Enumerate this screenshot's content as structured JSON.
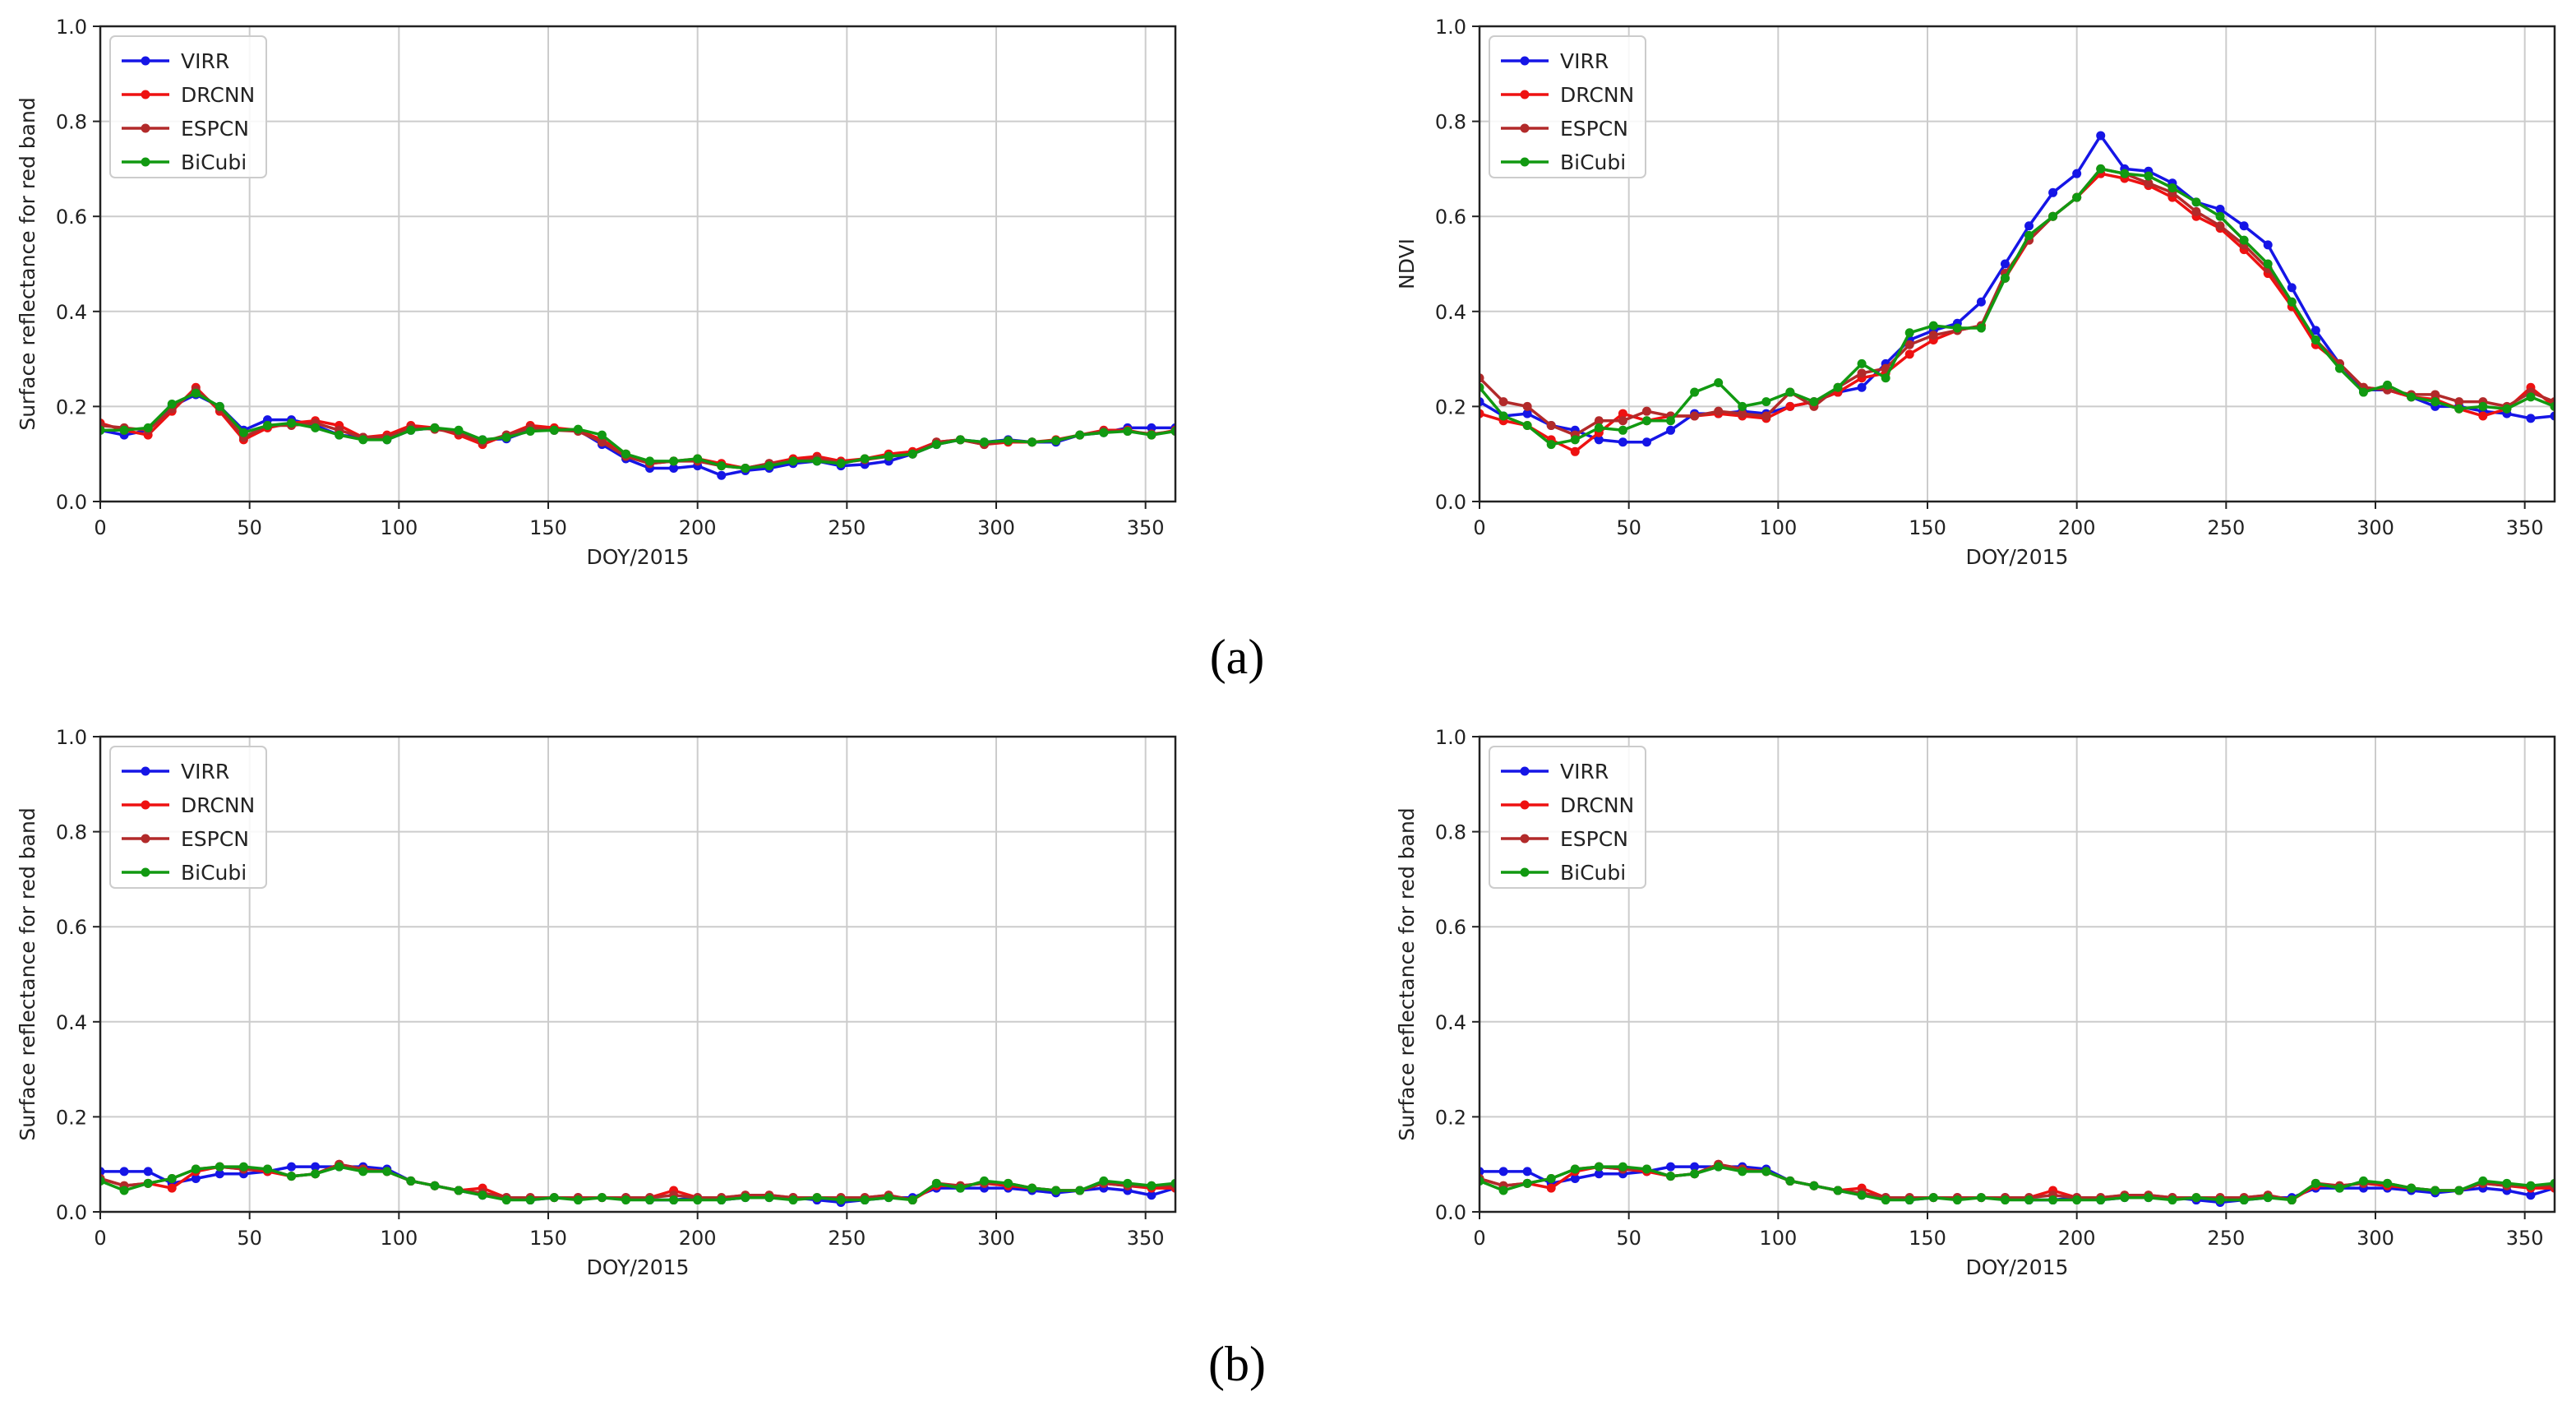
{
  "figure_labels": [
    "(a)",
    "(b)"
  ],
  "legend_colors": {
    "VIRR": "#1515e6",
    "DRCNN": "#ee1111",
    "ESPCN": "#b22a2a",
    "BiCubi": "#119911"
  },
  "chart_data": [
    {
      "type": "line",
      "title": "",
      "xlabel": "DOY/2015",
      "ylabel": "Surface reflectance for red band",
      "xlim": [
        0,
        360
      ],
      "ylim": [
        0,
        1.0
      ],
      "xticks": [
        0,
        50,
        100,
        150,
        200,
        250,
        300,
        350
      ],
      "yticks": [
        0.0,
        0.2,
        0.4,
        0.6,
        0.8,
        1.0
      ],
      "grid": true,
      "legend": "top-left",
      "x": [
        0,
        8,
        16,
        24,
        32,
        40,
        48,
        56,
        64,
        72,
        80,
        88,
        96,
        104,
        112,
        120,
        128,
        136,
        144,
        152,
        160,
        168,
        176,
        184,
        192,
        200,
        208,
        216,
        224,
        232,
        240,
        248,
        256,
        264,
        272,
        280,
        288,
        296,
        304,
        312,
        320,
        328,
        336,
        344,
        352,
        360
      ],
      "series": [
        {
          "name": "VIRR",
          "values": [
            0.15,
            0.14,
            0.15,
            0.2,
            0.225,
            0.2,
            0.15,
            0.172,
            0.172,
            0.16,
            0.14,
            0.135,
            0.13,
            0.15,
            0.155,
            0.145,
            0.13,
            0.132,
            0.15,
            0.15,
            0.15,
            0.12,
            0.09,
            0.07,
            0.07,
            0.075,
            0.055,
            0.065,
            0.07,
            0.08,
            0.085,
            0.075,
            0.078,
            0.085,
            0.1,
            0.12,
            0.13,
            0.125,
            0.13,
            0.125,
            0.125,
            0.14,
            0.145,
            0.155,
            0.155,
            0.155
          ]
        },
        {
          "name": "DRCNN",
          "values": [
            0.165,
            0.15,
            0.14,
            0.19,
            0.24,
            0.19,
            0.13,
            0.155,
            0.165,
            0.17,
            0.16,
            0.135,
            0.14,
            0.16,
            0.155,
            0.14,
            0.12,
            0.14,
            0.16,
            0.155,
            0.15,
            0.13,
            0.1,
            0.08,
            0.085,
            0.09,
            0.08,
            0.07,
            0.08,
            0.09,
            0.095,
            0.085,
            0.09,
            0.1,
            0.105,
            0.125,
            0.13,
            0.12,
            0.125,
            0.125,
            0.13,
            0.14,
            0.15,
            0.15,
            0.14,
            0.15
          ]
        },
        {
          "name": "ESPCN",
          "values": [
            0.16,
            0.155,
            0.15,
            0.195,
            0.235,
            0.195,
            0.135,
            0.16,
            0.16,
            0.165,
            0.15,
            0.135,
            0.135,
            0.155,
            0.152,
            0.145,
            0.125,
            0.14,
            0.155,
            0.15,
            0.148,
            0.125,
            0.095,
            0.08,
            0.085,
            0.085,
            0.075,
            0.07,
            0.08,
            0.085,
            0.09,
            0.082,
            0.088,
            0.095,
            0.1,
            0.125,
            0.13,
            0.12,
            0.128,
            0.125,
            0.128,
            0.14,
            0.148,
            0.148,
            0.142,
            0.148
          ]
        },
        {
          "name": "BiCubi",
          "values": [
            0.15,
            0.15,
            0.155,
            0.205,
            0.228,
            0.2,
            0.145,
            0.16,
            0.165,
            0.155,
            0.14,
            0.13,
            0.13,
            0.15,
            0.155,
            0.15,
            0.13,
            0.135,
            0.148,
            0.15,
            0.152,
            0.14,
            0.1,
            0.085,
            0.085,
            0.09,
            0.075,
            0.07,
            0.075,
            0.085,
            0.085,
            0.08,
            0.09,
            0.095,
            0.1,
            0.12,
            0.13,
            0.125,
            0.128,
            0.125,
            0.128,
            0.14,
            0.145,
            0.148,
            0.14,
            0.148
          ]
        }
      ]
    },
    {
      "type": "line",
      "title": "",
      "xlabel": "DOY/2015",
      "ylabel": "NDVI",
      "xlim": [
        0,
        360
      ],
      "ylim": [
        0,
        1.0
      ],
      "xticks": [
        0,
        50,
        100,
        150,
        200,
        250,
        300,
        350
      ],
      "yticks": [
        0.0,
        0.2,
        0.4,
        0.6,
        0.8,
        1.0
      ],
      "grid": true,
      "legend": "top-left",
      "x": [
        0,
        8,
        16,
        24,
        32,
        40,
        48,
        56,
        64,
        72,
        80,
        88,
        96,
        104,
        112,
        120,
        128,
        136,
        144,
        152,
        160,
        168,
        176,
        184,
        192,
        200,
        208,
        216,
        224,
        232,
        240,
        248,
        256,
        264,
        272,
        280,
        288,
        296,
        304,
        312,
        320,
        328,
        336,
        344,
        352,
        360
      ],
      "series": [
        {
          "name": "VIRR",
          "values": [
            0.21,
            0.18,
            0.185,
            0.16,
            0.15,
            0.13,
            0.125,
            0.125,
            0.15,
            0.185,
            0.185,
            0.19,
            0.185,
            0.2,
            0.21,
            0.23,
            0.24,
            0.29,
            0.34,
            0.36,
            0.375,
            0.42,
            0.5,
            0.58,
            0.65,
            0.69,
            0.77,
            0.7,
            0.695,
            0.67,
            0.63,
            0.615,
            0.58,
            0.54,
            0.45,
            0.36,
            0.29,
            0.235,
            0.235,
            0.22,
            0.2,
            0.2,
            0.19,
            0.185,
            0.175,
            0.18
          ]
        },
        {
          "name": "DRCNN",
          "values": [
            0.185,
            0.17,
            0.16,
            0.13,
            0.105,
            0.145,
            0.185,
            0.17,
            0.18,
            0.18,
            0.185,
            0.18,
            0.175,
            0.2,
            0.21,
            0.23,
            0.26,
            0.27,
            0.31,
            0.34,
            0.36,
            0.37,
            0.47,
            0.55,
            0.6,
            0.64,
            0.69,
            0.68,
            0.665,
            0.64,
            0.6,
            0.575,
            0.53,
            0.48,
            0.41,
            0.33,
            0.29,
            0.24,
            0.235,
            0.22,
            0.215,
            0.195,
            0.18,
            0.195,
            0.24,
            0.2
          ]
        },
        {
          "name": "ESPCN",
          "values": [
            0.26,
            0.21,
            0.2,
            0.16,
            0.14,
            0.17,
            0.17,
            0.19,
            0.18,
            0.18,
            0.19,
            0.185,
            0.18,
            0.23,
            0.2,
            0.24,
            0.27,
            0.28,
            0.33,
            0.35,
            0.36,
            0.37,
            0.48,
            0.55,
            0.6,
            0.64,
            0.7,
            0.69,
            0.67,
            0.65,
            0.61,
            0.58,
            0.54,
            0.49,
            0.42,
            0.34,
            0.29,
            0.24,
            0.235,
            0.225,
            0.225,
            0.21,
            0.21,
            0.2,
            0.23,
            0.21
          ]
        },
        {
          "name": "BiCubi",
          "values": [
            0.24,
            0.18,
            0.16,
            0.12,
            0.13,
            0.155,
            0.15,
            0.17,
            0.17,
            0.23,
            0.25,
            0.2,
            0.21,
            0.23,
            0.21,
            0.24,
            0.29,
            0.26,
            0.355,
            0.37,
            0.365,
            0.365,
            0.47,
            0.56,
            0.6,
            0.64,
            0.7,
            0.69,
            0.685,
            0.66,
            0.63,
            0.6,
            0.55,
            0.5,
            0.42,
            0.34,
            0.28,
            0.23,
            0.245,
            0.22,
            0.21,
            0.195,
            0.2,
            0.195,
            0.22,
            0.2
          ]
        }
      ]
    },
    {
      "type": "line",
      "title": "",
      "xlabel": "DOY/2015",
      "ylabel": "Surface reflectance for red band",
      "xlim": [
        0,
        360
      ],
      "ylim": [
        0,
        1.0
      ],
      "xticks": [
        0,
        50,
        100,
        150,
        200,
        250,
        300,
        350
      ],
      "yticks": [
        0.0,
        0.2,
        0.4,
        0.6,
        0.8,
        1.0
      ],
      "grid": true,
      "legend": "top-left",
      "x": [
        0,
        8,
        16,
        24,
        32,
        40,
        48,
        56,
        64,
        72,
        80,
        88,
        96,
        104,
        112,
        120,
        128,
        136,
        144,
        152,
        160,
        168,
        176,
        184,
        192,
        200,
        208,
        216,
        224,
        232,
        240,
        248,
        256,
        264,
        272,
        280,
        288,
        296,
        304,
        312,
        320,
        328,
        336,
        344,
        352,
        360
      ],
      "series": [
        {
          "name": "VIRR",
          "values": [
            0.085,
            0.085,
            0.085,
            0.06,
            0.07,
            0.08,
            0.08,
            0.085,
            0.095,
            0.095,
            0.095,
            0.095,
            0.09,
            0.065,
            0.055,
            0.045,
            0.035,
            0.03,
            0.025,
            0.03,
            0.03,
            0.03,
            0.03,
            0.025,
            0.025,
            0.03,
            0.025,
            0.03,
            0.03,
            0.03,
            0.025,
            0.02,
            0.025,
            0.03,
            0.03,
            0.05,
            0.05,
            0.05,
            0.05,
            0.045,
            0.04,
            0.045,
            0.05,
            0.045,
            0.035,
            0.05
          ]
        },
        {
          "name": "DRCNN",
          "values": [
            0.07,
            0.055,
            0.06,
            0.05,
            0.085,
            0.095,
            0.09,
            0.085,
            0.075,
            0.08,
            0.1,
            0.09,
            0.085,
            0.065,
            0.055,
            0.045,
            0.05,
            0.03,
            0.03,
            0.03,
            0.03,
            0.03,
            0.03,
            0.03,
            0.045,
            0.03,
            0.03,
            0.035,
            0.035,
            0.03,
            0.03,
            0.03,
            0.03,
            0.035,
            0.025,
            0.055,
            0.055,
            0.06,
            0.055,
            0.05,
            0.045,
            0.045,
            0.06,
            0.055,
            0.05,
            0.05
          ]
        },
        {
          "name": "ESPCN",
          "values": [
            0.07,
            0.055,
            0.06,
            0.07,
            0.09,
            0.095,
            0.09,
            0.09,
            0.075,
            0.08,
            0.1,
            0.09,
            0.085,
            0.065,
            0.055,
            0.045,
            0.04,
            0.03,
            0.03,
            0.03,
            0.03,
            0.03,
            0.03,
            0.03,
            0.035,
            0.03,
            0.03,
            0.035,
            0.035,
            0.03,
            0.03,
            0.03,
            0.03,
            0.035,
            0.025,
            0.06,
            0.055,
            0.06,
            0.06,
            0.05,
            0.045,
            0.045,
            0.06,
            0.055,
            0.055,
            0.055
          ]
        },
        {
          "name": "BiCubi",
          "values": [
            0.065,
            0.045,
            0.06,
            0.07,
            0.09,
            0.095,
            0.095,
            0.09,
            0.075,
            0.08,
            0.095,
            0.085,
            0.085,
            0.065,
            0.055,
            0.045,
            0.035,
            0.025,
            0.025,
            0.03,
            0.025,
            0.03,
            0.025,
            0.025,
            0.025,
            0.025,
            0.025,
            0.03,
            0.03,
            0.025,
            0.03,
            0.025,
            0.025,
            0.03,
            0.025,
            0.06,
            0.05,
            0.065,
            0.06,
            0.05,
            0.045,
            0.045,
            0.065,
            0.06,
            0.055,
            0.06
          ]
        }
      ]
    },
    {
      "type": "line",
      "title": "",
      "xlabel": "DOY/2015",
      "ylabel": "Surface reflectance for red band",
      "xlim": [
        0,
        360
      ],
      "ylim": [
        0,
        1.0
      ],
      "xticks": [
        0,
        50,
        100,
        150,
        200,
        250,
        300,
        350
      ],
      "yticks": [
        0.0,
        0.2,
        0.4,
        0.6,
        0.8,
        1.0
      ],
      "grid": true,
      "legend": "top-left",
      "x": [
        0,
        8,
        16,
        24,
        32,
        40,
        48,
        56,
        64,
        72,
        80,
        88,
        96,
        104,
        112,
        120,
        128,
        136,
        144,
        152,
        160,
        168,
        176,
        184,
        192,
        200,
        208,
        216,
        224,
        232,
        240,
        248,
        256,
        264,
        272,
        280,
        288,
        296,
        304,
        312,
        320,
        328,
        336,
        344,
        352,
        360
      ],
      "series": [
        {
          "name": "VIRR",
          "values": [
            0.085,
            0.085,
            0.085,
            0.06,
            0.07,
            0.08,
            0.08,
            0.085,
            0.095,
            0.095,
            0.095,
            0.095,
            0.09,
            0.065,
            0.055,
            0.045,
            0.035,
            0.03,
            0.025,
            0.03,
            0.03,
            0.03,
            0.03,
            0.025,
            0.025,
            0.03,
            0.025,
            0.03,
            0.03,
            0.03,
            0.025,
            0.02,
            0.025,
            0.03,
            0.03,
            0.05,
            0.05,
            0.05,
            0.05,
            0.045,
            0.04,
            0.045,
            0.05,
            0.045,
            0.035,
            0.05
          ]
        },
        {
          "name": "DRCNN",
          "values": [
            0.07,
            0.055,
            0.06,
            0.05,
            0.085,
            0.095,
            0.09,
            0.085,
            0.075,
            0.08,
            0.1,
            0.09,
            0.085,
            0.065,
            0.055,
            0.045,
            0.05,
            0.03,
            0.03,
            0.03,
            0.03,
            0.03,
            0.03,
            0.03,
            0.045,
            0.03,
            0.03,
            0.035,
            0.035,
            0.03,
            0.03,
            0.03,
            0.03,
            0.035,
            0.025,
            0.055,
            0.055,
            0.06,
            0.055,
            0.05,
            0.045,
            0.045,
            0.06,
            0.055,
            0.05,
            0.05
          ]
        },
        {
          "name": "ESPCN",
          "values": [
            0.07,
            0.055,
            0.06,
            0.07,
            0.09,
            0.095,
            0.09,
            0.09,
            0.075,
            0.08,
            0.1,
            0.09,
            0.085,
            0.065,
            0.055,
            0.045,
            0.04,
            0.03,
            0.03,
            0.03,
            0.03,
            0.03,
            0.03,
            0.03,
            0.035,
            0.03,
            0.03,
            0.035,
            0.035,
            0.03,
            0.03,
            0.03,
            0.03,
            0.035,
            0.025,
            0.06,
            0.055,
            0.06,
            0.06,
            0.05,
            0.045,
            0.045,
            0.06,
            0.055,
            0.055,
            0.055
          ]
        },
        {
          "name": "BiCubi",
          "values": [
            0.065,
            0.045,
            0.06,
            0.07,
            0.09,
            0.095,
            0.095,
            0.09,
            0.075,
            0.08,
            0.095,
            0.085,
            0.085,
            0.065,
            0.055,
            0.045,
            0.035,
            0.025,
            0.025,
            0.03,
            0.025,
            0.03,
            0.025,
            0.025,
            0.025,
            0.025,
            0.025,
            0.03,
            0.03,
            0.025,
            0.03,
            0.025,
            0.025,
            0.03,
            0.025,
            0.06,
            0.05,
            0.065,
            0.06,
            0.05,
            0.045,
            0.045,
            0.065,
            0.06,
            0.055,
            0.06
          ]
        }
      ]
    }
  ]
}
